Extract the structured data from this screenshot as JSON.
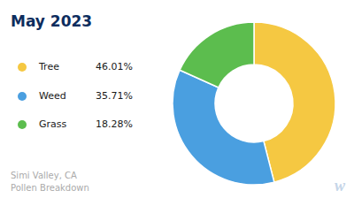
{
  "chart_data": {
    "type": "pie",
    "title": "May 2023",
    "subtitle": "Simi Valley, CA\nPollen Breakdown",
    "categories": [
      "Tree",
      "Weed",
      "Grass"
    ],
    "values": [
      46.01,
      35.71,
      18.28
    ],
    "value_labels": [
      "46.01%",
      "35.71%",
      "18.28%"
    ],
    "colors": [
      "#f5c842",
      "#4a9fe0",
      "#5cbd4e"
    ],
    "annotations": [
      "w"
    ]
  }
}
